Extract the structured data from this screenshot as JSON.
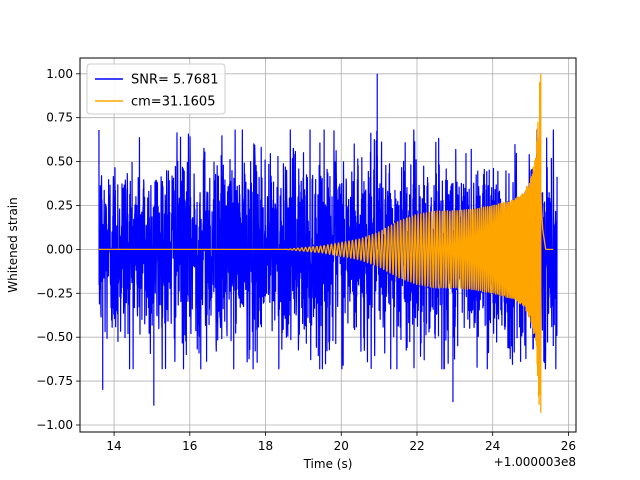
{
  "chart_data": {
    "type": "line",
    "title": "",
    "xlabel": "Time (s)",
    "ylabel": "Whitened strain",
    "x_offset_label": "+1.000003e8",
    "xlim": [
      13.1,
      26.2
    ],
    "ylim": [
      -1.04,
      1.09
    ],
    "grid": true,
    "legend_position": "top-left",
    "x_ticks": [
      14,
      16,
      18,
      20,
      22,
      24,
      26
    ],
    "x_tick_labels": [
      "14",
      "16",
      "18",
      "20",
      "22",
      "24",
      "26"
    ],
    "y_ticks": [
      -1.0,
      -0.75,
      -0.5,
      -0.25,
      0.0,
      0.25,
      0.5,
      0.75,
      1.0
    ],
    "y_tick_labels": [
      "−1.00",
      "−0.75",
      "−0.50",
      "−0.25",
      "0.00",
      "0.25",
      "0.50",
      "0.75",
      "1.00"
    ],
    "series": [
      {
        "name": "SNR= 5.7681",
        "color": "#0000ff",
        "description": "whitened detector strain, noisy",
        "x_range": [
          13.6,
          25.7
        ],
        "typical_amplitude": 0.5,
        "notable_peaks": [
          {
            "x": 20.95,
            "y": 1.0
          },
          {
            "x": 21.0,
            "y": -0.35
          },
          {
            "x": 15.05,
            "y": -0.89
          },
          {
            "x": 22.95,
            "y": -0.87
          },
          {
            "x": 13.7,
            "y": -0.8
          },
          {
            "x": 25.55,
            "y": 0.52
          },
          {
            "x": 25.6,
            "y": -0.55
          }
        ]
      },
      {
        "name": "cm=31.1605",
        "color": "#ffa500",
        "description": "template waveform (chirp)",
        "x_range": [
          13.6,
          25.6
        ],
        "envelope": [
          {
            "x": 13.6,
            "amp": 0.0
          },
          {
            "x": 18.5,
            "amp": 0.0
          },
          {
            "x": 19.5,
            "amp": 0.02
          },
          {
            "x": 20.5,
            "amp": 0.06
          },
          {
            "x": 21.0,
            "amp": 0.1
          },
          {
            "x": 21.5,
            "amp": 0.16
          },
          {
            "x": 22.0,
            "amp": 0.2
          },
          {
            "x": 22.5,
            "amp": 0.22
          },
          {
            "x": 23.0,
            "amp": 0.22
          },
          {
            "x": 23.5,
            "amp": 0.23
          },
          {
            "x": 24.0,
            "amp": 0.25
          },
          {
            "x": 24.5,
            "amp": 0.28
          },
          {
            "x": 24.8,
            "amp": 0.32
          },
          {
            "x": 25.0,
            "amp": 0.4
          },
          {
            "x": 25.15,
            "amp": 0.55
          },
          {
            "x": 25.25,
            "amp": 1.0
          },
          {
            "x": 25.32,
            "amp": 0.3
          },
          {
            "x": 25.4,
            "amp": 0.0
          }
        ],
        "peak_max": {
          "x": 25.27,
          "y": 1.0
        },
        "peak_min": {
          "x": 25.27,
          "y": -0.93
        }
      }
    ]
  }
}
